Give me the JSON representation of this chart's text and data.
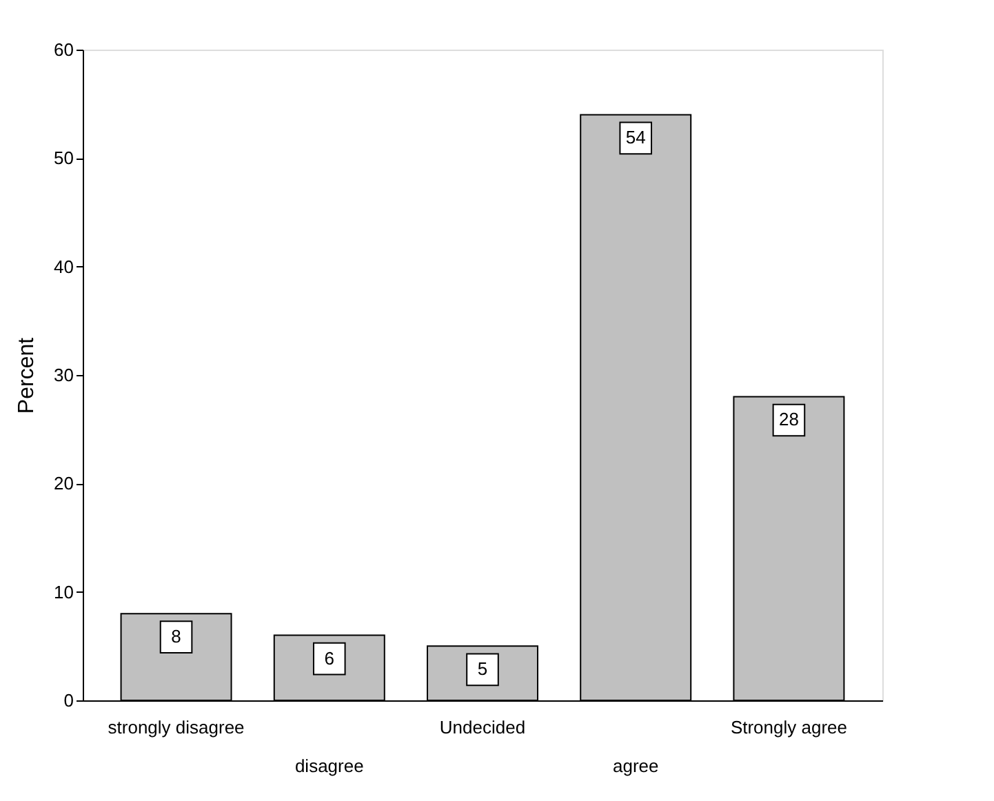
{
  "chart_data": {
    "type": "bar",
    "ylabel": "Percent",
    "categories": [
      "strongly disagree",
      "disagree",
      "Undecided",
      "agree",
      "Strongly agree"
    ],
    "values": [
      8,
      6,
      5,
      54,
      28
    ],
    "color": "#c0c0c0",
    "ylim": [
      0,
      60
    ],
    "yticks": [
      0,
      10,
      20,
      30,
      40,
      50,
      60
    ],
    "grid": false,
    "data_labels": true
  }
}
